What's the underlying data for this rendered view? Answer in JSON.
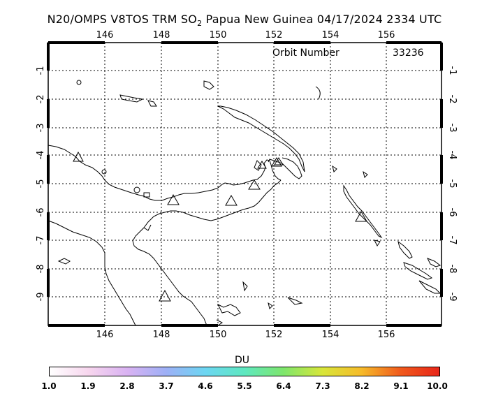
{
  "title": {
    "prefix": "N20/OMPS V8TOS TRM SO",
    "subscript": "2",
    "suffix": " Papua New Guinea 04/17/2024 2334 UTC"
  },
  "map": {
    "longitude_labels": [
      "146",
      "148",
      "150",
      "152",
      "154",
      "156"
    ],
    "latitude_labels": [
      "-1",
      "-2",
      "-3",
      "-4",
      "-5",
      "-6",
      "-7",
      "-8",
      "-9"
    ],
    "orbit_label": "Orbit Number",
    "orbit_number": "33236",
    "volcano_marker_count": 9
  },
  "colorbar": {
    "unit": "DU",
    "ticks": [
      "1.0",
      "1.9",
      "2.8",
      "3.7",
      "4.6",
      "5.5",
      "6.4",
      "7.3",
      "8.2",
      "9.1",
      "10.0"
    ],
    "colors": [
      "#ffffff",
      "#f7d6ee",
      "#d9b2f2",
      "#9db0f6",
      "#6cd6f2",
      "#5ee8c0",
      "#7ee66c",
      "#d8e63a",
      "#f6bb2a",
      "#f05a1c",
      "#e8261a"
    ]
  }
}
